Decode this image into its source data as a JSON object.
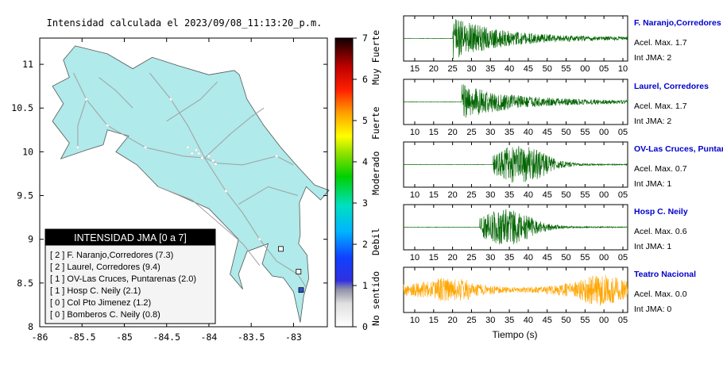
{
  "map": {
    "title": "Intensidad calculada el 2023/09/08_11:13:20_p.m.",
    "x_ticks": [
      -86,
      -85.5,
      -85,
      -84.5,
      -84,
      -83.5,
      -83
    ],
    "x_tick_labels": [
      "-86",
      "-85.5",
      "-85",
      "-84.5",
      "-84",
      "-83.5",
      "-83"
    ],
    "y_ticks": [
      8,
      8.5,
      9,
      9.5,
      10,
      10.5,
      11
    ],
    "y_tick_labels": [
      "8",
      "8.5",
      "9",
      "9.5",
      "10",
      "10.5",
      "11"
    ],
    "xlim": [
      -86,
      -82.6
    ],
    "ylim": [
      8,
      11.3
    ],
    "land_color": "#b0eaea",
    "road_color": "#a0a0a0"
  },
  "legend": {
    "title": "INTENSIDAD JMA [0 a 7]",
    "items": [
      {
        "text": "[ 2 ]  F. Naranjo,Corredores (7.3)"
      },
      {
        "text": "[ 2 ]  Laurel, Corredores (9.4)"
      },
      {
        "text": "[ 1 ]  OV-Las Cruces, Puntarenas (2.0)"
      },
      {
        "text": "[ 1 ]  Hosp C. Neily (2.1)"
      },
      {
        "text": "[ 0 ]  Col Pto Jimenez (1.2)"
      },
      {
        "text": "[ 0 ]  Bomberos C. Neily (0.8)"
      }
    ]
  },
  "colorbar": {
    "ticks": [
      "0",
      "1",
      "2",
      "3",
      "4",
      "5",
      "6",
      "7"
    ],
    "categories": [
      "No sentido",
      "Debil",
      "Moderado",
      "Fuerte",
      "Muy Fuerte"
    ]
  },
  "stations_on_map": [
    {
      "lon": -82.91,
      "lat": 8.42,
      "color": "#3050d0"
    },
    {
      "lon": -82.94,
      "lat": 8.63,
      "color": "#ffffff"
    },
    {
      "lon": -83.15,
      "lat": 8.89,
      "color": "#ffffff"
    }
  ],
  "seismograms": [
    {
      "station": "F. Naranjo,Corredores",
      "acel_label": "Acel. Max. 1.7",
      "int_label": "Int JMA: 2",
      "ticks": [
        "15",
        "20",
        "25",
        "30",
        "35",
        "40",
        "45",
        "50",
        "55",
        "00",
        "05",
        "10"
      ],
      "color": "#006400",
      "onset": 0.22,
      "peak": 1.0,
      "shape": "decay",
      "axis": true
    },
    {
      "station": "Laurel, Corredores",
      "acel_label": "Acel. Max. 1.7",
      "int_label": "Int JMA: 2",
      "ticks": [
        "10",
        "15",
        "20",
        "25",
        "30",
        "35",
        "40",
        "45",
        "50",
        "55",
        "00",
        "05"
      ],
      "color": "#006400",
      "onset": 0.26,
      "peak": 0.85,
      "shape": "decay",
      "axis": true
    },
    {
      "station": "OV-Las Cruces, Puntar",
      "acel_label": "Acel. Max. 0.7",
      "int_label": "Int JMA: 1",
      "ticks": [
        "10",
        "15",
        "20",
        "25",
        "30",
        "35",
        "40",
        "45",
        "50",
        "55",
        "00",
        "05"
      ],
      "color": "#006400",
      "onset": 0.4,
      "peak": 1.0,
      "shape": "burst",
      "axis": true
    },
    {
      "station": "Hosp C. Neily",
      "acel_label": "Acel. Max. 0.6",
      "int_label": "Int JMA: 1",
      "ticks": [
        "10",
        "15",
        "20",
        "25",
        "30",
        "35",
        "40",
        "45",
        "50",
        "55",
        "00",
        "05"
      ],
      "color": "#006400",
      "onset": 0.34,
      "peak": 0.9,
      "shape": "burst",
      "axis": true
    },
    {
      "station": "Teatro Nacional",
      "acel_label": "Acel. Max. 0.0",
      "int_label": "Int JMA: 0",
      "ticks": [
        "10",
        "15",
        "20",
        "25",
        "30",
        "35",
        "40",
        "45",
        "50",
        "55",
        "00",
        "05"
      ],
      "color": "#ffa500",
      "onset": 0.0,
      "peak": 0.9,
      "shape": "noise",
      "axis": true
    }
  ],
  "seismo_xlabel": "Tiempo (s)",
  "colors": {
    "station_label": "#0000cc",
    "legend_title_bg": "#000000",
    "legend_bg": "#f0f0f0"
  }
}
